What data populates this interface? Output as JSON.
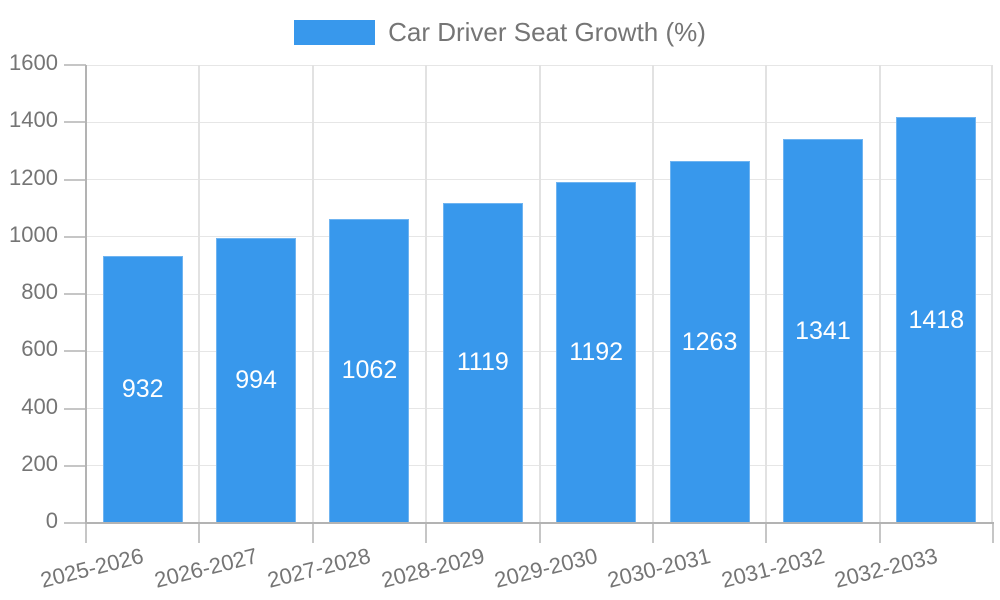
{
  "legend": {
    "swatch_color": "#3898EC"
  },
  "chart_data": {
    "type": "bar",
    "title": "Car Driver Seat Growth (%)",
    "categories": [
      "2025-2026",
      "2026-2027",
      "2027-2028",
      "2028-2029",
      "2029-2030",
      "2030-2031",
      "2031-2032",
      "2032-2033"
    ],
    "values": [
      932,
      994,
      1062,
      1119,
      1192,
      1263,
      1341,
      1418
    ],
    "series_name": "Car Driver Seat Growth (%)",
    "xlabel": "",
    "ylabel": "",
    "ylim": [
      0,
      1600
    ],
    "ytick_step": 200,
    "ytick_labels": [
      "0",
      "200",
      "400",
      "600",
      "800",
      "1000",
      "1200",
      "1400",
      "1600"
    ],
    "grid": true,
    "legend_position": "top-center",
    "bar_color": "#3898EC",
    "value_label_color": "#ffffff",
    "axis_text_color": "#757575",
    "gridline_color": "#e6e6e6",
    "vgridline_color": "#e2e2e2",
    "axis_line_color": "#b3b3b3",
    "tick_color": "#c6c6c6"
  }
}
